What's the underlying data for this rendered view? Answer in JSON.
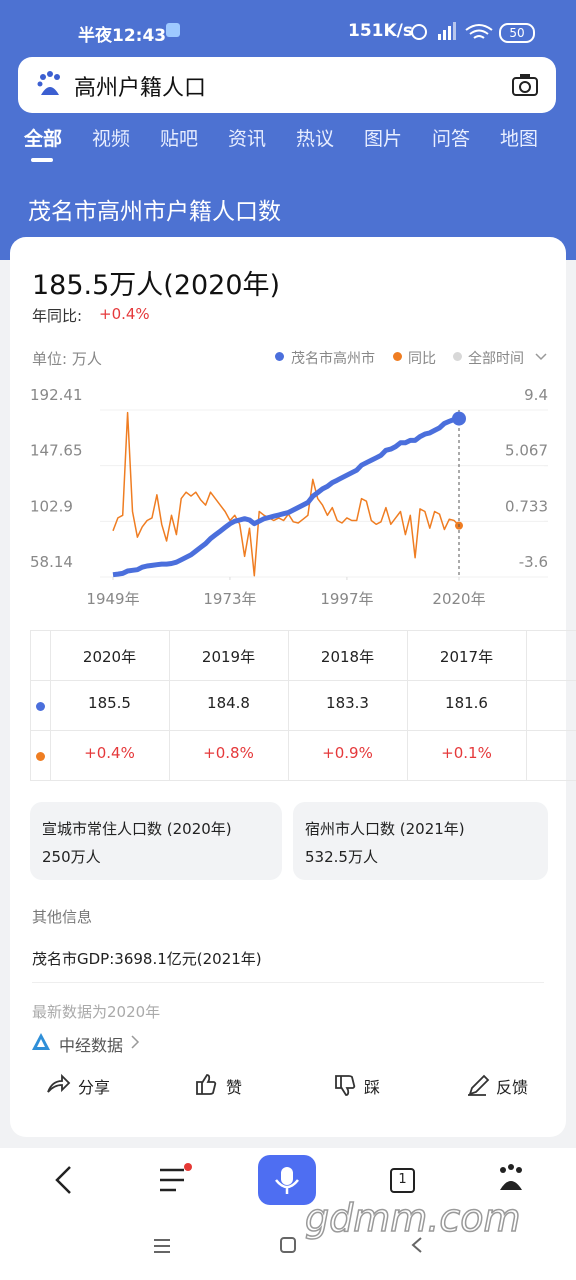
{
  "status_bar": {
    "time": "半夜12:43",
    "speed": "151K/s",
    "battery": "50"
  },
  "search": {
    "query": "高州户籍人口"
  },
  "tabs": [
    "全部",
    "视频",
    "贴吧",
    "资讯",
    "热议",
    "图片",
    "问答",
    "地图"
  ],
  "result_title": "茂名市高州市户籍人口数",
  "card": {
    "headline": "185.5万人(2020年)",
    "yoy_label": "年同比:",
    "yoy_value": "+0.4%",
    "unit": "单位: 万人",
    "time_filter": "全部时间"
  },
  "chart_data": {
    "type": "line",
    "x": [
      1949,
      1950,
      1951,
      1952,
      1953,
      1954,
      1955,
      1956,
      1957,
      1958,
      1959,
      1960,
      1961,
      1962,
      1963,
      1964,
      1965,
      1966,
      1967,
      1968,
      1969,
      1970,
      1971,
      1972,
      1973,
      1974,
      1975,
      1976,
      1977,
      1978,
      1979,
      1980,
      1981,
      1982,
      1983,
      1984,
      1985,
      1986,
      1987,
      1988,
      1989,
      1990,
      1991,
      1992,
      1993,
      1994,
      1995,
      1996,
      1997,
      1998,
      1999,
      2000,
      2001,
      2002,
      2003,
      2004,
      2005,
      2006,
      2007,
      2008,
      2009,
      2010,
      2011,
      2012,
      2013,
      2014,
      2015,
      2016,
      2017,
      2018,
      2019,
      2020
    ],
    "xlim": [
      1949,
      2020
    ],
    "xticks": [
      {
        "value": 1949,
        "label": "1949年"
      },
      {
        "value": 1973,
        "label": "1973年"
      },
      {
        "value": 1997,
        "label": "1997年"
      },
      {
        "value": 2020,
        "label": "2020年"
      }
    ],
    "ylim": [
      58.14,
      192.41
    ],
    "yticks": [
      192.41,
      147.65,
      102.9,
      58.14
    ],
    "y2lim": [
      -3.6,
      9.4
    ],
    "y2ticks": [
      9.4,
      5.067,
      0.733,
      -3.6
    ],
    "grid": true,
    "legend": "top-right",
    "series": [
      {
        "name": "茂名市高州市",
        "color": "#4b6fdc",
        "values": [
          60,
          60.5,
          61,
          63,
          63.5,
          64,
          66,
          67,
          67.5,
          68,
          68.5,
          68.5,
          69,
          70,
          72,
          74,
          76,
          79,
          82,
          85,
          89,
          92,
          95,
          98,
          101,
          103,
          104,
          105,
          104,
          101,
          103,
          105,
          106,
          107,
          108,
          109,
          110,
          112,
          114,
          116,
          118,
          123,
          126,
          129,
          131,
          134,
          136,
          138,
          140,
          142,
          144,
          148,
          150,
          152,
          154,
          156,
          160,
          161,
          163,
          166,
          166,
          168,
          168,
          171,
          173,
          174,
          176,
          178,
          181.6,
          183.3,
          184.8,
          185.5
        ]
      },
      {
        "name": "同比",
        "color": "#ef7d22",
        "axis": "y2",
        "values": [
          0,
          1,
          1.2,
          9.2,
          1.5,
          -0.5,
          0.3,
          0.8,
          1,
          2.8,
          0.5,
          -0.8,
          1.2,
          -0.3,
          2.5,
          3,
          2.7,
          3,
          2.4,
          2,
          3,
          2.5,
          2,
          1.5,
          0.8,
          1.2,
          0.5,
          -2,
          0.2,
          -3.5,
          1.5,
          1.2,
          1,
          0.8,
          1,
          0.8,
          1.3,
          0.7,
          0.6,
          0.9,
          1.2,
          4,
          2.5,
          2,
          1.2,
          1.8,
          0.8,
          0.6,
          1,
          0.8,
          0.8,
          2.5,
          2.3,
          0.8,
          0.5,
          0.7,
          1.8,
          0.5,
          1,
          1.5,
          -0.3,
          1.2,
          -2.1,
          1.7,
          1.5,
          0.2,
          1.5,
          1.3,
          0.1,
          0.9,
          0.8,
          0.4
        ]
      }
    ]
  },
  "table": {
    "columns": [
      "2020年",
      "2019年",
      "2018年",
      "2017年"
    ],
    "rows": [
      [
        "185.5",
        "184.8",
        "183.3",
        "181.6"
      ],
      [
        "+0.4%",
        "+0.8%",
        "+0.9%",
        "+0.1%"
      ]
    ]
  },
  "related": [
    {
      "title": "宣城市常住人口数 (2020年)",
      "value": "250万人"
    },
    {
      "title": "宿州市人口数 (2021年)",
      "value": "532.5万人"
    }
  ],
  "other_info": {
    "heading": "其他信息",
    "item": "茂名市GDP:3698.1亿元(2021年)",
    "note": "最新数据为2020年",
    "source": "中经数据"
  },
  "actions": [
    "分享",
    "赞",
    "踩",
    "反馈"
  ],
  "bottom_nav": {
    "tab_count": "1"
  },
  "watermark": "gdmm.com"
}
